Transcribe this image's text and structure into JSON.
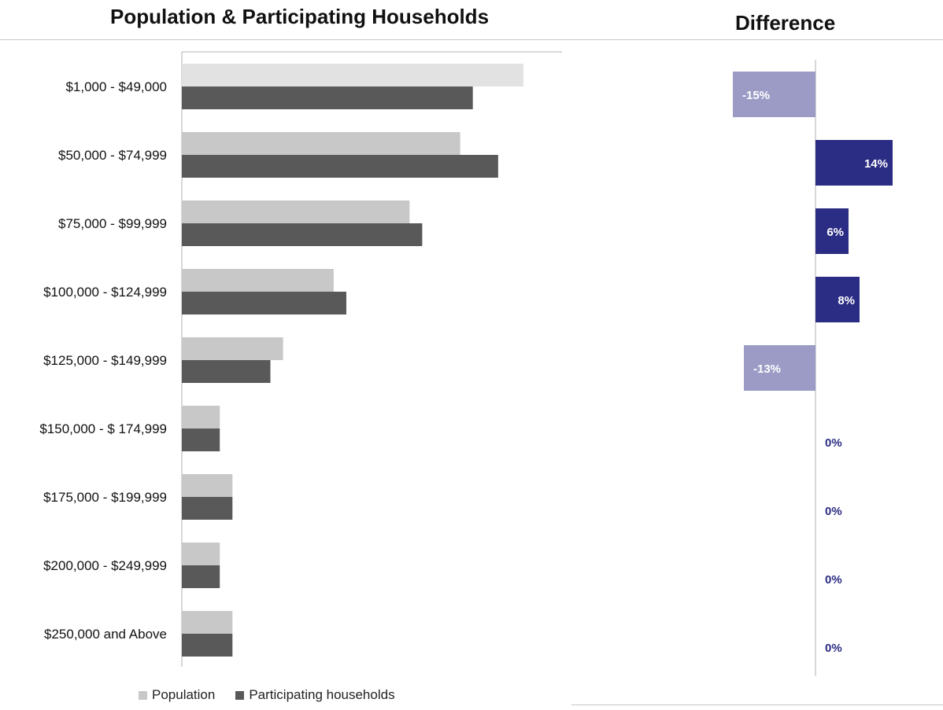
{
  "colors": {
    "population": "#c8c8c8",
    "population_top": "#e2e2e2",
    "participating": "#595959",
    "diff_negative": "#9b9bc6",
    "diff_positive": "#2b2c83",
    "diff_zero_label": "#2b2c83",
    "axis": "#b0b0b0"
  },
  "chart_data": [
    {
      "type": "bar",
      "orientation": "horizontal",
      "title": "Population & Participating Households",
      "categories": [
        "$1,000 - $49,000",
        "$50,000 - $74,999",
        "$75,000 - $99,999",
        "$100,000 - $124,999",
        "$125,000 - $149,999",
        "$150,000 - $ 174,999",
        "$175,000 - $199,999",
        "$200,000 - $249,999",
        "$250,000 and Above"
      ],
      "series": [
        {
          "name": "Population",
          "values": [
            27,
            22,
            18,
            12,
            8,
            3,
            4,
            3,
            4
          ]
        },
        {
          "name": "Participating households",
          "values": [
            23,
            25,
            19,
            13,
            7,
            3,
            4,
            3,
            4
          ]
        }
      ],
      "xlim": [
        0,
        30
      ],
      "legend": "bottom"
    },
    {
      "type": "bar",
      "orientation": "horizontal",
      "title": "Difference",
      "categories": [
        "$1,000 - $49,000",
        "$50,000 - $74,999",
        "$75,000 - $99,999",
        "$100,000 - $124,999",
        "$125,000 - $149,999",
        "$150,000 - $ 174,999",
        "$175,000 - $199,999",
        "$200,000 - $249,999",
        "$250,000 and Above"
      ],
      "values": [
        -15,
        14,
        6,
        8,
        -13,
        0,
        0,
        0,
        0
      ],
      "data_labels": [
        "-15%",
        "14%",
        "6%",
        "8%",
        "-13%",
        "0%",
        "0%",
        "0%",
        "0%"
      ],
      "xlim": [
        -20,
        20
      ]
    }
  ]
}
